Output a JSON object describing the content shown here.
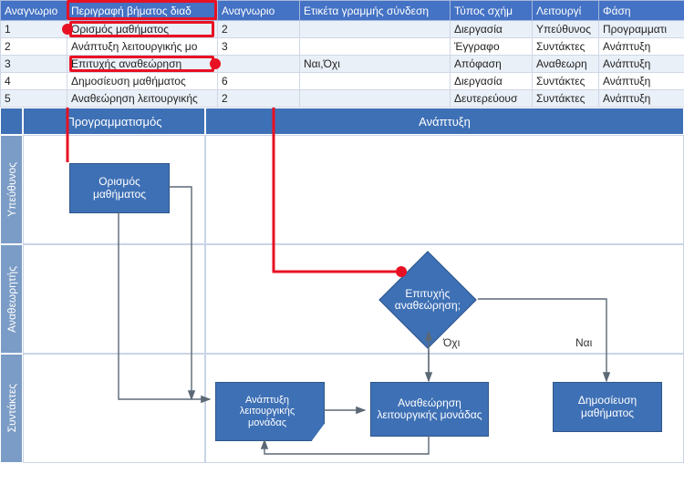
{
  "table": {
    "headers": {
      "c0": "Αναγνωριο",
      "c1": "Περιγραφή βήματος διαδ",
      "c2": "Αναγνωριο",
      "c3": "Ετικέτα γραμμής σύνδεση",
      "c4": "Τύπος σχήμ",
      "c5": "Λειτουργί",
      "c6": "Φάση"
    },
    "rows": [
      {
        "id": "1",
        "desc": "Ορισμός μαθήματος",
        "next": "2",
        "edge": "",
        "shape": "Διεργασία",
        "role": "Υπεύθυνος",
        "phase": "Προγραμματι"
      },
      {
        "id": "2",
        "desc": "Ανάπτυξη λειτουργικής μο",
        "next": "3",
        "edge": "",
        "shape": "Έγγραφο",
        "role": "Συντάκτες",
        "phase": "Ανάπτυξη"
      },
      {
        "id": "3",
        "desc": "Επιτυχής αναθεώρηση",
        "next": "",
        "edge": "Ναι,Όχι",
        "shape": "Απόφαση",
        "role": "Αναθεωρη",
        "phase": "Ανάπτυξη"
      },
      {
        "id": "4",
        "desc": "Δημοσίευση μαθήματος",
        "next": "6",
        "edge": "",
        "shape": "Διεργασία",
        "role": "Συντάκτες",
        "phase": "Ανάπτυξη"
      },
      {
        "id": "5",
        "desc": "Αναθεώρηση λειτουργικής",
        "next": "2",
        "edge": "",
        "shape": "Δευτερεύουσ",
        "role": "Συντάκτες",
        "phase": "Ανάπτυξη"
      }
    ]
  },
  "diagram": {
    "col_headers": {
      "plan": "Προγραμματισμός",
      "dev": "Ανάπτυξη"
    },
    "row_headers": {
      "owner": "Υπεύθυνος",
      "reviewer": "Αναθεωρητής",
      "authors": "Συντάκτες"
    },
    "nodes": {
      "define": "Ορισμός μαθήματος",
      "success": "Επιτυχής αναθεώρηση;",
      "develop": "Ανάπτυξη λειτουργικής μονάδας",
      "review": "Αναθεώρηση λειτουργικής μονάδας",
      "publish": "Δημοσίευση μαθήματος"
    },
    "edge_labels": {
      "no": "Όχι",
      "yes": "Ναι"
    },
    "colors": {
      "header_bg": "#4472c4",
      "lane_header_bg": "#3e70b5",
      "row_header_bg": "#7b9cc6",
      "box_bg": "#3e70b5",
      "callout": "#e81123",
      "arrow": "#5b6876"
    }
  }
}
